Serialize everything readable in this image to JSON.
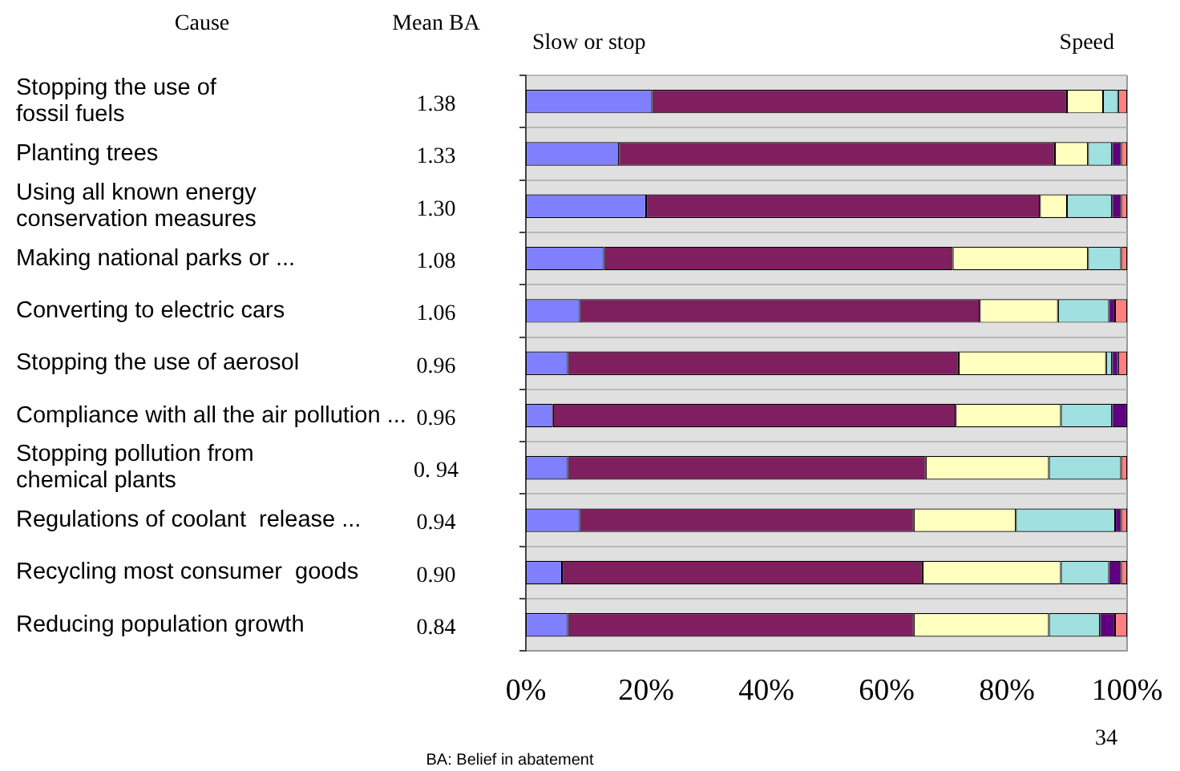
{
  "chart_data": {
    "type": "bar",
    "orientation": "horizontal",
    "stacked": true,
    "ylabel": "Cause",
    "y2label": "Mean BA",
    "categories": [
      "Stopping the use of\nfossil fuels",
      "Planting trees",
      "Using all known energy\nconservation measures",
      "Making national parks or ...",
      "Converting to electric cars",
      "Stopping the use of aerosol",
      "Compliance with all the air pollution ...",
      "Stopping pollution from\nchemical plants",
      "Regulations of coolant  release ...",
      "Recycling most consumer  goods",
      "Reducing population growth"
    ],
    "y2_categories": [
      "1.38",
      "1.33",
      "1.30",
      "1.08",
      "1.06",
      "0.96",
      "0.96",
      "0. 94",
      "0.94",
      "0.90",
      "0.84"
    ],
    "series": [
      {
        "color": "#8080ff",
        "values": [
          21,
          15.5,
          20,
          13,
          9,
          7,
          4.5,
          7,
          9,
          6,
          7
        ]
      },
      {
        "color": "#7f1f5f",
        "values": [
          69,
          72.5,
          65.5,
          58,
          66.5,
          65,
          67,
          59.5,
          55.5,
          60,
          57.5
        ]
      },
      {
        "color": "#ffffc0",
        "values": [
          6,
          5.5,
          4.5,
          22.5,
          13,
          24.5,
          17.5,
          20.5,
          17,
          23,
          22.5
        ]
      },
      {
        "color": "#a0e0e0",
        "values": [
          2.5,
          4,
          7.5,
          5.5,
          8.5,
          1,
          8.5,
          12,
          16.5,
          8,
          8.5
        ]
      },
      {
        "color": "#600080",
        "values": [
          0,
          1.5,
          1.5,
          0,
          1,
          1,
          2.5,
          0,
          1,
          2,
          2.5
        ]
      },
      {
        "color": "#ff8080",
        "values": [
          1.5,
          1,
          1,
          1,
          2,
          1.5,
          0,
          1,
          1,
          1,
          2
        ]
      }
    ],
    "xlim": [
      0,
      100
    ],
    "xticks": [
      {
        "value": 0,
        "label": "0%"
      },
      {
        "value": 20,
        "label": "20%"
      },
      {
        "value": 40,
        "label": "40%"
      },
      {
        "value": 60,
        "label": "60%"
      },
      {
        "value": 80,
        "label": "80%"
      },
      {
        "value": 100,
        "label": "100%"
      }
    ],
    "grid": "y",
    "legend": false,
    "annotations": [
      "Slow or stop",
      "Speed",
      "BA: Belief in abatement",
      "34"
    ]
  }
}
